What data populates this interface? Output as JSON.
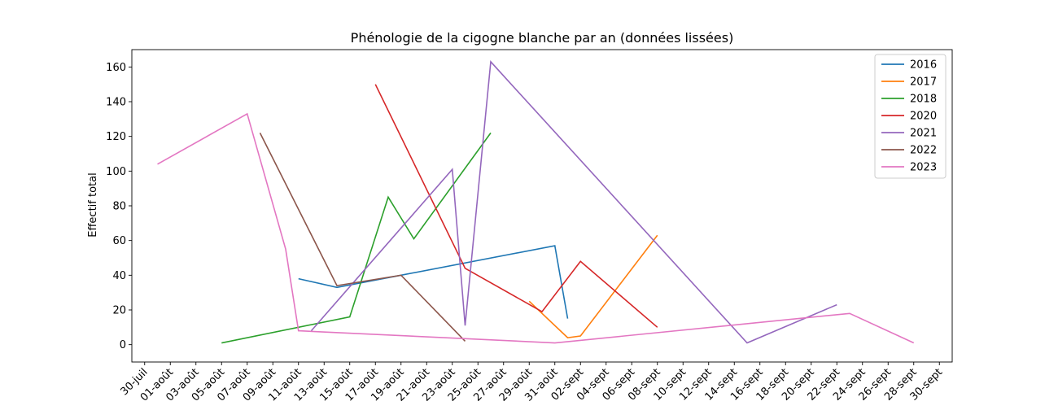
{
  "chart_data": {
    "type": "line",
    "title": "Phénologie de la cigogne blanche par an (données lissées)",
    "xlabel": "",
    "ylabel": "Effectif total",
    "x_axis": "day of year 2016 (date)",
    "x_tick_labels": [
      "30-juil",
      "01-août",
      "03-août",
      "05-août",
      "07-août",
      "09-août",
      "11-août",
      "13-août",
      "15-août",
      "17-août",
      "19-août",
      "21-août",
      "23-août",
      "25-août",
      "27-août",
      "29-août",
      "31-août",
      "02-sept",
      "04-sept",
      "06-sept",
      "08-sept",
      "10-sept",
      "12-sept",
      "14-sept",
      "16-sept",
      "18-sept",
      "20-sept",
      "22-sept",
      "24-sept",
      "26-sept",
      "28-sept",
      "30-sept"
    ],
    "x_tick_dates": [
      "2016-07-30",
      "2016-08-01",
      "2016-08-03",
      "2016-08-05",
      "2016-08-07",
      "2016-08-09",
      "2016-08-11",
      "2016-08-13",
      "2016-08-15",
      "2016-08-17",
      "2016-08-19",
      "2016-08-21",
      "2016-08-23",
      "2016-08-25",
      "2016-08-27",
      "2016-08-29",
      "2016-08-31",
      "2016-09-02",
      "2016-09-04",
      "2016-09-06",
      "2016-09-08",
      "2016-09-10",
      "2016-09-12",
      "2016-09-14",
      "2016-09-16",
      "2016-09-18",
      "2016-09-20",
      "2016-09-22",
      "2016-09-24",
      "2016-09-26",
      "2016-09-28",
      "2016-09-30"
    ],
    "xlim": [
      "2016-07-29",
      "2016-10-01"
    ],
    "ylim": [
      -10,
      170
    ],
    "y_ticks": [
      0,
      20,
      40,
      60,
      80,
      100,
      120,
      140,
      160
    ],
    "grid": false,
    "legend_position": "top-right",
    "series": [
      {
        "name": "2016",
        "color": "#1f77b4",
        "points": [
          [
            "2016-08-11",
            38
          ],
          [
            "2016-08-14",
            33
          ],
          [
            "2016-08-19",
            40
          ],
          [
            "2016-08-31",
            57
          ],
          [
            "2016-09-01",
            15
          ]
        ]
      },
      {
        "name": "2017",
        "color": "#ff7f0e",
        "points": [
          [
            "2016-08-29",
            25
          ],
          [
            "2016-09-01",
            4
          ],
          [
            "2016-09-02",
            5
          ],
          [
            "2016-09-08",
            63
          ]
        ]
      },
      {
        "name": "2018",
        "color": "#2ca02c",
        "points": [
          [
            "2016-08-05",
            1
          ],
          [
            "2016-08-15",
            16
          ],
          [
            "2016-08-18",
            85
          ],
          [
            "2016-08-20",
            61
          ],
          [
            "2016-08-26",
            122
          ]
        ]
      },
      {
        "name": "2020",
        "color": "#d62728",
        "points": [
          [
            "2016-08-17",
            150
          ],
          [
            "2016-08-24",
            44
          ],
          [
            "2016-08-30",
            19
          ],
          [
            "2016-09-02",
            48
          ],
          [
            "2016-09-08",
            10
          ]
        ]
      },
      {
        "name": "2021",
        "color": "#9467bd",
        "points": [
          [
            "2016-08-12",
            8
          ],
          [
            "2016-08-23",
            101
          ],
          [
            "2016-08-24",
            11
          ],
          [
            "2016-08-26",
            163
          ],
          [
            "2016-09-15",
            1
          ],
          [
            "2016-09-22",
            23
          ]
        ]
      },
      {
        "name": "2022",
        "color": "#8c564b",
        "points": [
          [
            "2016-08-08",
            122
          ],
          [
            "2016-08-14",
            34
          ],
          [
            "2016-08-19",
            40
          ],
          [
            "2016-08-24",
            2
          ]
        ]
      },
      {
        "name": "2023",
        "color": "#e377c2",
        "points": [
          [
            "2016-07-31",
            104
          ],
          [
            "2016-08-07",
            133
          ],
          [
            "2016-08-10",
            55
          ],
          [
            "2016-08-11",
            8
          ],
          [
            "2016-08-31",
            1
          ],
          [
            "2016-09-23",
            18
          ],
          [
            "2016-09-28",
            1
          ]
        ]
      }
    ]
  }
}
